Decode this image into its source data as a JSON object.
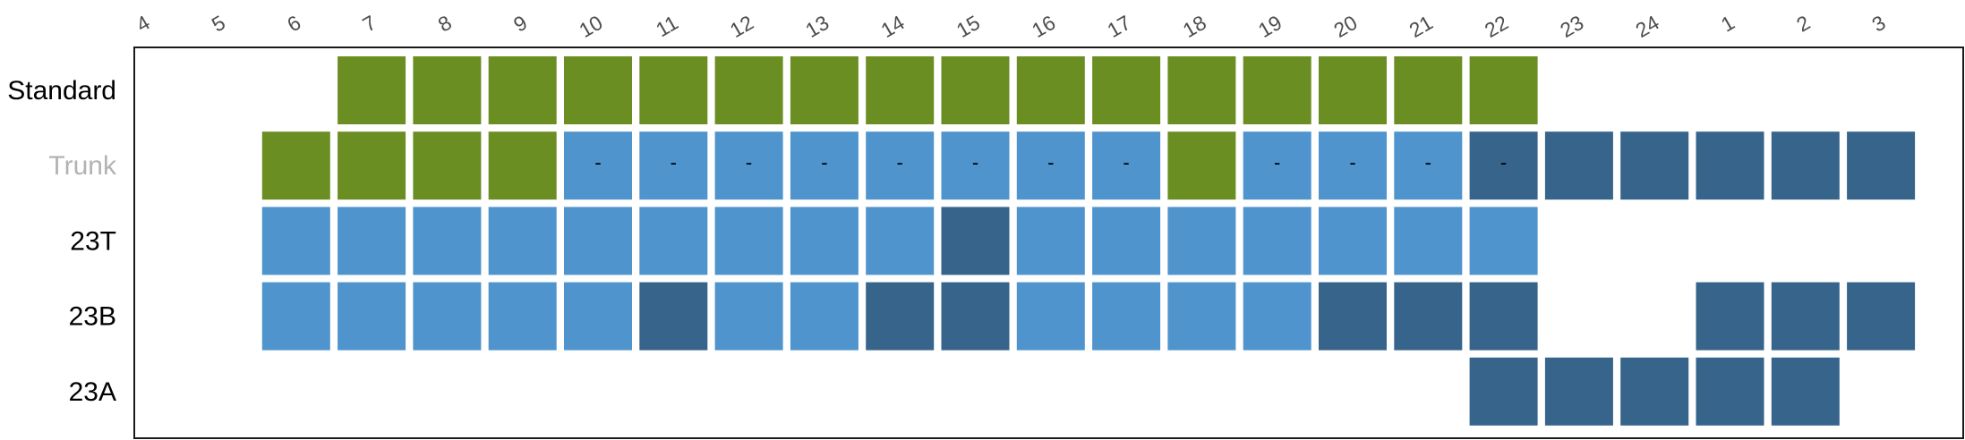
{
  "chart_data": {
    "type": "heatmap",
    "x": [
      "4",
      "5",
      "6",
      "7",
      "8",
      "9",
      "10",
      "11",
      "12",
      "13",
      "14",
      "15",
      "16",
      "17",
      "18",
      "19",
      "20",
      "21",
      "22",
      "23",
      "24",
      "1",
      "2",
      "3"
    ],
    "rows": [
      {
        "label": "Standard",
        "label_color": "#000000",
        "cells": [
          null,
          null,
          "G",
          "G",
          "G",
          "G",
          "G",
          "G",
          "G",
          "G",
          "G",
          "G",
          "G",
          "G",
          "G",
          "G",
          "G",
          "G",
          null,
          null,
          null,
          null,
          null,
          null
        ]
      },
      {
        "label": "Trunk",
        "label_color": "#b3b3b3",
        "cells": [
          null,
          "G",
          "G",
          "G",
          "G",
          "L",
          "L",
          "L",
          "L",
          "L",
          "L",
          "L",
          "L",
          "G",
          "L",
          "L",
          "L",
          "D",
          "D",
          "D",
          "D",
          "D",
          "D",
          null
        ]
      },
      {
        "label": "23T",
        "label_color": "#000000",
        "cells": [
          null,
          "L",
          "L",
          "L",
          "L",
          "L",
          "L",
          "L",
          "L",
          "L",
          "D",
          "L",
          "L",
          "L",
          "L",
          "L",
          "L",
          "L",
          null,
          null,
          null,
          null,
          null,
          null
        ]
      },
      {
        "label": "23B",
        "label_color": "#000000",
        "cells": [
          null,
          "L",
          "L",
          "L",
          "L",
          "L",
          "D",
          "L",
          "L",
          "D",
          "D",
          "L",
          "L",
          "L",
          "L",
          "D",
          "D",
          "D",
          null,
          null,
          "D",
          "D",
          "D",
          null
        ]
      },
      {
        "label": "23A",
        "label_color": "#000000",
        "cells": [
          null,
          null,
          null,
          null,
          null,
          null,
          null,
          null,
          null,
          null,
          null,
          null,
          null,
          null,
          null,
          null,
          null,
          "D",
          "D",
          "D",
          "D",
          "D",
          null,
          null
        ]
      }
    ],
    "cell_labels": [
      {
        "row": 1,
        "col": 5,
        "text": "-"
      },
      {
        "row": 1,
        "col": 6,
        "text": "-"
      },
      {
        "row": 1,
        "col": 7,
        "text": "-"
      },
      {
        "row": 1,
        "col": 8,
        "text": "-"
      },
      {
        "row": 1,
        "col": 9,
        "text": "-"
      },
      {
        "row": 1,
        "col": 10,
        "text": "-"
      },
      {
        "row": 1,
        "col": 11,
        "text": "-"
      },
      {
        "row": 1,
        "col": 12,
        "text": "-"
      },
      {
        "row": 1,
        "col": 14,
        "text": "-"
      },
      {
        "row": 1,
        "col": 15,
        "text": "-"
      },
      {
        "row": 1,
        "col": 16,
        "text": "-"
      },
      {
        "row": 1,
        "col": 17,
        "text": "-"
      }
    ],
    "colors": {
      "G": "#6b8e23",
      "L": "#4f94cd",
      "D": "#36648b"
    },
    "x_position": "top",
    "x_tick_rotation": -30,
    "grid": false,
    "legend": "none"
  }
}
